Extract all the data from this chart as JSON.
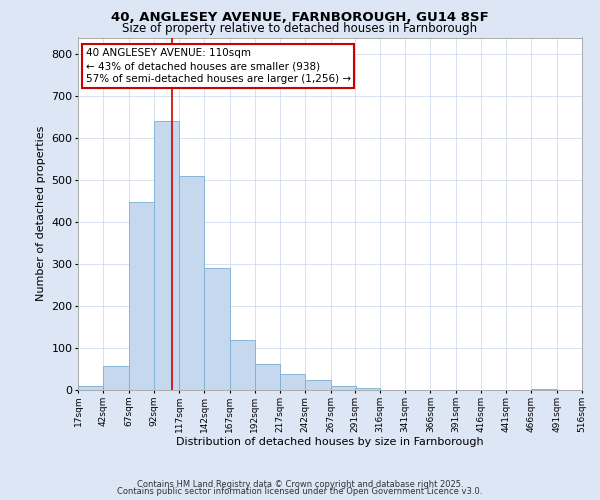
{
  "title1": "40, ANGLESEY AVENUE, FARNBOROUGH, GU14 8SF",
  "title2": "Size of property relative to detached houses in Farnborough",
  "xlabel": "Distribution of detached houses by size in Farnborough",
  "ylabel": "Number of detached properties",
  "bin_edges": [
    17,
    42,
    67,
    92,
    117,
    142,
    167,
    192,
    217,
    242,
    267,
    291,
    316,
    341,
    366,
    391,
    416,
    441,
    466,
    491,
    516
  ],
  "bar_heights": [
    10,
    58,
    447,
    641,
    511,
    291,
    118,
    62,
    37,
    23,
    9,
    5,
    0,
    0,
    0,
    0,
    0,
    0,
    3,
    0,
    0
  ],
  "bar_color": "#c5d8ee",
  "bar_edgecolor": "#7aafd4",
  "vline_x": 110,
  "vline_color": "#cc0000",
  "ylim": [
    0,
    840
  ],
  "yticks": [
    0,
    100,
    200,
    300,
    400,
    500,
    600,
    700,
    800
  ],
  "bg_color": "#dce6f5",
  "plot_bg_color": "#ffffff",
  "annotation_text": "40 ANGLESEY AVENUE: 110sqm\n← 43% of detached houses are smaller (938)\n57% of semi-detached houses are larger (1,256) →",
  "annotation_box_color": "#ffffff",
  "annotation_box_edgecolor": "#cc0000",
  "footer1": "Contains HM Land Registry data © Crown copyright and database right 2025.",
  "footer2": "Contains public sector information licensed under the Open Government Licence v3.0.",
  "tick_labels": [
    "17sqm",
    "42sqm",
    "67sqm",
    "92sqm",
    "117sqm",
    "142sqm",
    "167sqm",
    "192sqm",
    "217sqm",
    "242sqm",
    "267sqm",
    "291sqm",
    "316sqm",
    "341sqm",
    "366sqm",
    "391sqm",
    "416sqm",
    "441sqm",
    "466sqm",
    "491sqm",
    "516sqm"
  ]
}
